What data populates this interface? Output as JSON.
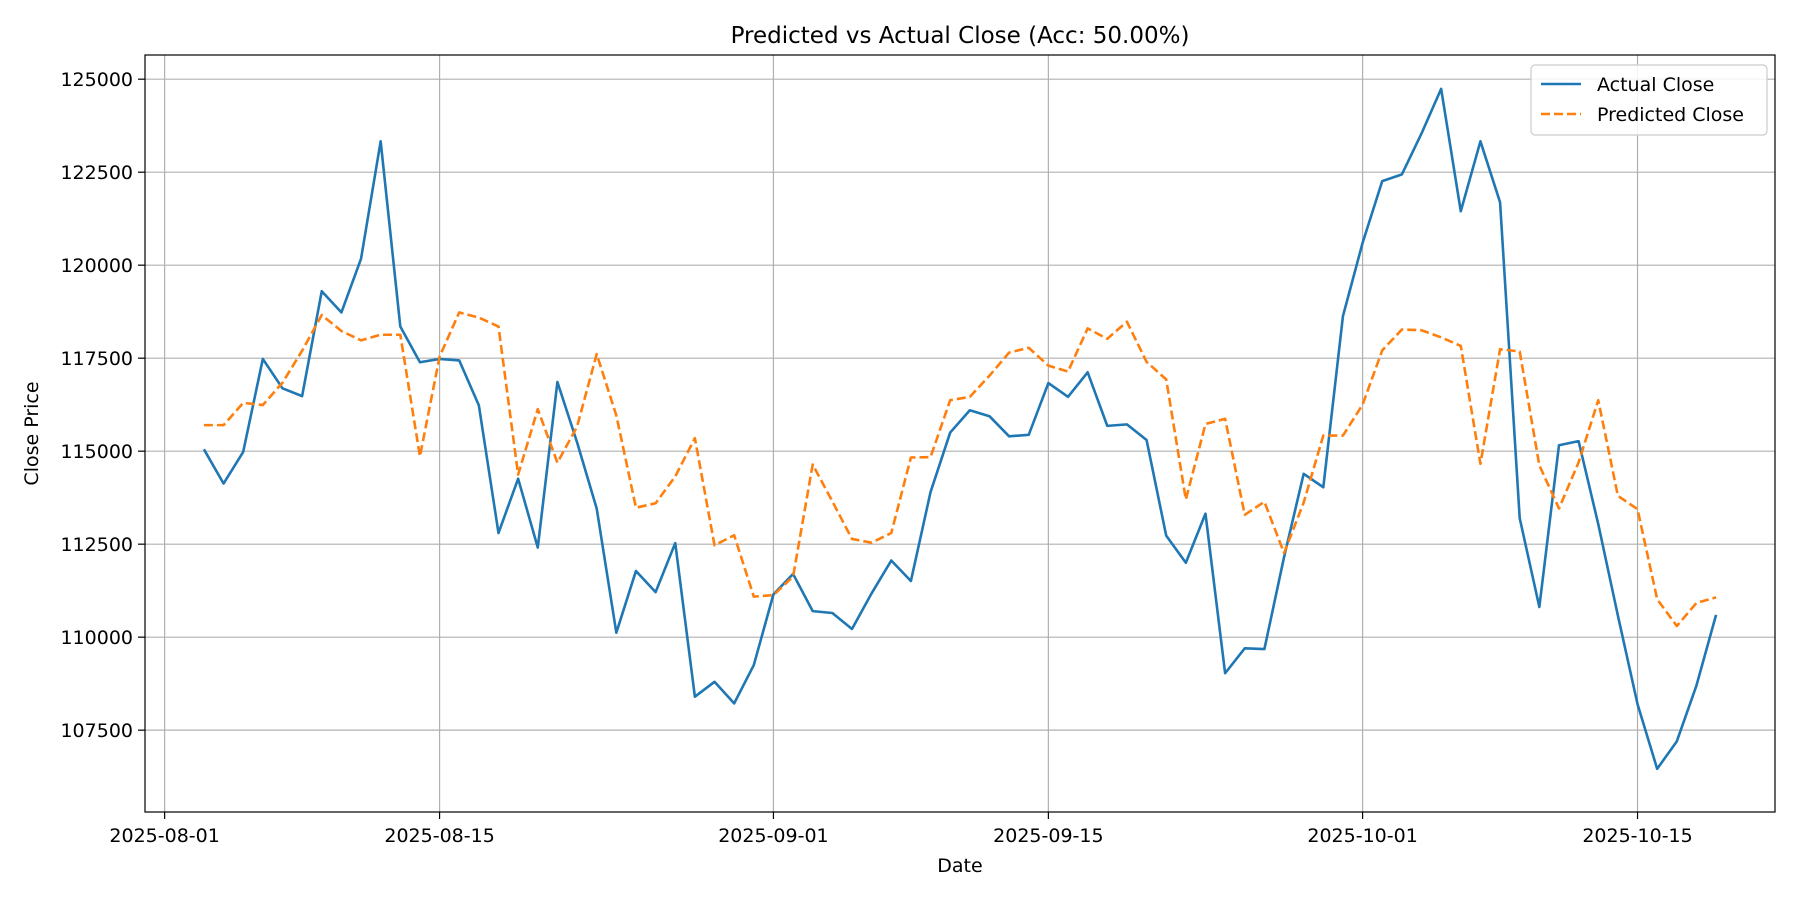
{
  "chart_data": {
    "type": "line",
    "title": "Predicted vs Actual Close (Acc: 50.00%)",
    "xlabel": "Date",
    "ylabel": "Close Price",
    "x_axis": {
      "type": "date",
      "range": [
        "2025-07-31",
        "2025-10-22"
      ],
      "ticks": [
        {
          "date": "2025-08-01",
          "label": "2025-08-01"
        },
        {
          "date": "2025-08-15",
          "label": "2025-08-15"
        },
        {
          "date": "2025-09-01",
          "label": "2025-09-01"
        },
        {
          "date": "2025-09-15",
          "label": "2025-09-15"
        },
        {
          "date": "2025-10-01",
          "label": "2025-10-01"
        },
        {
          "date": "2025-10-15",
          "label": "2025-10-15"
        }
      ]
    },
    "y_axis": {
      "range": [
        105300,
        125650
      ],
      "ticks": [
        {
          "value": 107500,
          "label": "107500"
        },
        {
          "value": 110000,
          "label": "110000"
        },
        {
          "value": 112500,
          "label": "112500"
        },
        {
          "value": 115000,
          "label": "115000"
        },
        {
          "value": 117500,
          "label": "117500"
        },
        {
          "value": 120000,
          "label": "120000"
        },
        {
          "value": 122500,
          "label": "122500"
        },
        {
          "value": 125000,
          "label": "125000"
        }
      ]
    },
    "grid": true,
    "legend": {
      "position": "top-right"
    },
    "dates": [
      "2025-08-03",
      "2025-08-04",
      "2025-08-05",
      "2025-08-06",
      "2025-08-07",
      "2025-08-08",
      "2025-08-09",
      "2025-08-10",
      "2025-08-11",
      "2025-08-12",
      "2025-08-13",
      "2025-08-14",
      "2025-08-15",
      "2025-08-16",
      "2025-08-17",
      "2025-08-18",
      "2025-08-19",
      "2025-08-20",
      "2025-08-21",
      "2025-08-22",
      "2025-08-23",
      "2025-08-24",
      "2025-08-25",
      "2025-08-26",
      "2025-08-27",
      "2025-08-28",
      "2025-08-29",
      "2025-08-30",
      "2025-08-31",
      "2025-09-01",
      "2025-09-02",
      "2025-09-03",
      "2025-09-04",
      "2025-09-05",
      "2025-09-06",
      "2025-09-07",
      "2025-09-08",
      "2025-09-09",
      "2025-09-10",
      "2025-09-11",
      "2025-09-12",
      "2025-09-13",
      "2025-09-14",
      "2025-09-15",
      "2025-09-16",
      "2025-09-17",
      "2025-09-18",
      "2025-09-19",
      "2025-09-20",
      "2025-09-21",
      "2025-09-22",
      "2025-09-23",
      "2025-09-24",
      "2025-09-25",
      "2025-09-26",
      "2025-09-27",
      "2025-09-28",
      "2025-09-29",
      "2025-09-30",
      "2025-10-01",
      "2025-10-02",
      "2025-10-03",
      "2025-10-04",
      "2025-10-05",
      "2025-10-06",
      "2025-10-07",
      "2025-10-08",
      "2025-10-09",
      "2025-10-10",
      "2025-10-11",
      "2025-10-12",
      "2025-10-13",
      "2025-10-14",
      "2025-10-15",
      "2025-10-16",
      "2025-10-17",
      "2025-10-18",
      "2025-10-19"
    ],
    "series": [
      {
        "name": "Actual Close",
        "color": "#1f77b4",
        "style": "solid",
        "values": [
          115050,
          114130,
          114980,
          117480,
          116690,
          116480,
          119300,
          118730,
          120170,
          123330,
          118350,
          117390,
          117480,
          117440,
          116230,
          112800,
          114260,
          112410,
          116860,
          115240,
          113460,
          110120,
          111780,
          111210,
          112530,
          108400,
          108800,
          108220,
          109250,
          111150,
          111700,
          110700,
          110650,
          110220,
          111180,
          112060,
          111510,
          113900,
          115500,
          116100,
          115940,
          115400,
          115440,
          116830,
          116460,
          117120,
          115680,
          115720,
          115300,
          112730,
          112000,
          113320,
          109030,
          109700,
          109680,
          112150,
          114390,
          114030,
          118630,
          120600,
          122260,
          122440,
          123540,
          124740,
          121450,
          123330,
          121690,
          113200,
          110810,
          115160,
          115270,
          113040,
          110580,
          108200,
          106460,
          107200,
          108700,
          110600
        ]
      },
      {
        "name": "Predicted Close",
        "color": "#ff7f0e",
        "style": "dashed",
        "values": [
          115700,
          115700,
          116300,
          116240,
          116840,
          117700,
          118660,
          118230,
          117980,
          118130,
          118130,
          114860,
          117540,
          118730,
          118590,
          118350,
          114370,
          116130,
          114690,
          115660,
          117610,
          115960,
          113480,
          113600,
          114320,
          115350,
          112470,
          112740,
          111090,
          111130,
          111630,
          114640,
          113650,
          112640,
          112540,
          112800,
          114830,
          114840,
          116370,
          116460,
          117030,
          117650,
          117780,
          117300,
          117140,
          118300,
          118020,
          118480,
          117400,
          116930,
          113700,
          115730,
          115870,
          113290,
          113640,
          112260,
          113620,
          115420,
          115420,
          116250,
          117710,
          118270,
          118250,
          118060,
          117830,
          114660,
          117740,
          117680,
          114620,
          113460,
          114700,
          116370,
          113800,
          113440,
          111020,
          110300,
          110920,
          111070
        ]
      }
    ]
  }
}
